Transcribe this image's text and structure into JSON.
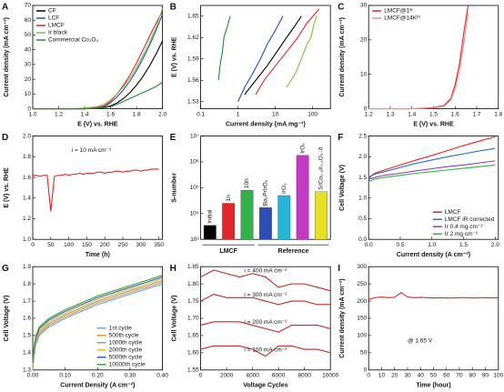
{
  "chart_data": [
    {
      "type": "line",
      "label": "A",
      "xlabel": "E (V) vs. RHE",
      "ylabel": "Current density (mA cm⁻²)",
      "x": [
        1.0,
        1.1,
        1.2,
        1.3,
        1.4,
        1.5,
        1.55,
        1.6,
        1.65,
        1.7,
        1.75,
        1.8,
        1.85,
        1.9,
        1.95,
        2.0
      ],
      "xlim": [
        1.0,
        2.0
      ],
      "xticks": [
        {
          "value": 1,
          "label": "1.0"
        },
        1.2,
        1.4,
        1.6,
        1.8,
        {
          "value": 2,
          "label": "2.0"
        }
      ],
      "ylim": [
        0,
        70
      ],
      "yticks": [
        0,
        10,
        20,
        30,
        40,
        50,
        60,
        70
      ],
      "legend": "top-left",
      "series": [
        {
          "name": "CF",
          "color": "#000000",
          "values": [
            0,
            0,
            0,
            0,
            0,
            0.5,
            1,
            2,
            4,
            7,
            11,
            16,
            22,
            29,
            37,
            46
          ]
        },
        {
          "name": "LCF",
          "color": "#2b4fb3",
          "values": [
            0,
            0,
            0,
            0,
            0,
            0.5,
            1.5,
            4,
            8,
            13,
            19,
            26,
            34,
            43,
            53,
            64
          ]
        },
        {
          "name": "LMCF",
          "color": "#e0262b",
          "values": [
            0,
            0,
            0,
            0,
            0,
            1,
            2,
            5,
            10,
            16,
            23,
            31,
            40,
            49,
            58,
            66
          ]
        },
        {
          "name": "Ir black",
          "color": "#7ac143",
          "values": [
            0,
            0,
            0,
            0,
            0.5,
            1.5,
            3,
            6,
            10,
            15,
            21,
            28,
            36,
            45,
            55,
            68
          ]
        },
        {
          "name": "Commercial Co₃O₄",
          "color": "#1f8a3a",
          "values": [
            0,
            0,
            0,
            0,
            0,
            0.3,
            0.6,
            1.5,
            3,
            5,
            7,
            9,
            11,
            13,
            15,
            18
          ]
        }
      ]
    },
    {
      "type": "line",
      "label": "B",
      "xlabel": "Current density (mA mg⁻¹)",
      "ylabel": "E (V) vs. RHE",
      "xlog": true,
      "xlim": [
        0.1,
        300
      ],
      "xticks": [
        0.1,
        1,
        10,
        100
      ],
      "ylim": [
        1.52,
        1.665
      ],
      "yticks": [
        1.53,
        1.56,
        1.59,
        1.62,
        1.65
      ],
      "series": [
        {
          "color": "#1f8a3a",
          "x": [
            0.3,
            0.33,
            0.38,
            0.42,
            0.48,
            0.55,
            0.62
          ],
          "values": [
            1.56,
            1.58,
            1.6,
            1.62,
            1.63,
            1.64,
            1.65
          ]
        },
        {
          "color": "#2b4fb3",
          "x": [
            1,
            1.5,
            2.5,
            4,
            6,
            10,
            16
          ],
          "values": [
            1.53,
            1.55,
            1.57,
            1.59,
            1.61,
            1.63,
            1.65
          ]
        },
        {
          "color": "#000000",
          "x": [
            1.5,
            3,
            6,
            11,
            20,
            32,
            50
          ],
          "values": [
            1.54,
            1.56,
            1.58,
            1.6,
            1.62,
            1.635,
            1.65
          ]
        },
        {
          "color": "#e0262b",
          "x": [
            3,
            5,
            10,
            20,
            40,
            70,
            150
          ],
          "values": [
            1.54,
            1.56,
            1.58,
            1.6,
            1.62,
            1.64,
            1.66
          ]
        },
        {
          "color": "#7ac143",
          "x": [
            20,
            35,
            50,
            70,
            90,
            110,
            130
          ],
          "values": [
            1.55,
            1.57,
            1.59,
            1.61,
            1.62,
            1.64,
            1.65
          ]
        }
      ]
    },
    {
      "type": "line",
      "label": "C",
      "xlabel": "E (V) vs. RHE",
      "ylabel": "Current density (mA cm⁻²)",
      "x": [
        1.2,
        1.3,
        1.4,
        1.5,
        1.55,
        1.58,
        1.6,
        1.62,
        1.64,
        1.66
      ],
      "xlim": [
        1.2,
        1.8
      ],
      "xticks": [
        1.2,
        1.3,
        1.4,
        1.5,
        1.6,
        1.7,
        1.8
      ],
      "ylim": [
        0,
        30
      ],
      "yticks": [
        0,
        10,
        20,
        30
      ],
      "legend": "top-left",
      "series": [
        {
          "name": "LMCF@1ˢᵗ",
          "color": "#e0262b",
          "values": [
            0,
            0,
            0,
            0.3,
            1,
            3,
            7,
            13,
            22,
            30
          ]
        },
        {
          "name": "LMCF@14Kᵗʰ",
          "color": "#f08a8c",
          "values": [
            0,
            0,
            0,
            0.2,
            0.8,
            2.5,
            6,
            11,
            19,
            28
          ]
        }
      ]
    },
    {
      "type": "line",
      "label": "D",
      "xlabel": "Time (h)",
      "ylabel": "E (V) vs. RHE",
      "annotations": [
        "i = 10 mA cm⁻²"
      ],
      "annotation_position": "top",
      "x": [
        0,
        10,
        20,
        30,
        40,
        50,
        60,
        70,
        80,
        90,
        100,
        110,
        120,
        130,
        140,
        150,
        160,
        170,
        180,
        190,
        200,
        210,
        220,
        230,
        240,
        250,
        260,
        270,
        280,
        290,
        300,
        310,
        320,
        330,
        340,
        350
      ],
      "xlim": [
        0,
        360
      ],
      "xticks": [
        0,
        50,
        100,
        150,
        200,
        250,
        300,
        350
      ],
      "ylim": [
        1.0,
        2.0
      ],
      "yticks": [
        {
          "value": 1,
          "label": "1.0"
        },
        1.2,
        1.4,
        1.6,
        1.8,
        {
          "value": 2,
          "label": "2.0"
        }
      ],
      "series": [
        {
          "color": "#e0262b",
          "values": [
            1.62,
            1.62,
            1.61,
            1.62,
            1.62,
            1.27,
            1.61,
            1.62,
            1.62,
            1.63,
            1.62,
            1.63,
            1.63,
            1.64,
            1.63,
            1.64,
            1.64,
            1.64,
            1.65,
            1.65,
            1.64,
            1.65,
            1.65,
            1.66,
            1.66,
            1.65,
            1.66,
            1.66,
            1.67,
            1.67,
            1.66,
            1.67,
            1.67,
            1.68,
            1.68,
            1.68
          ]
        }
      ]
    },
    {
      "type": "bar",
      "label": "E",
      "ylabel": "S-number",
      "ylog": true,
      "groups": [
        "LMCF",
        "Reference"
      ],
      "categories": [
        "Initial",
        "1h",
        "10h",
        "Ba₂PrIrO₆",
        "IrO₂",
        "IrOₓ",
        "SrCo₀.₉Ir₀.₁O₃₋δ"
      ],
      "values": [
        3500,
        25000,
        80000,
        17000,
        50000,
        1800000,
        70000
      ],
      "colors": [
        "#000000",
        "#e0262b",
        "#2fb34a",
        "#2b4fb3",
        "#26b5d9",
        "#c03bc0",
        "#e6e020"
      ],
      "ylim": [
        1000,
        10000000
      ],
      "yticks": [
        {
          "value": 1000,
          "label": "10³"
        },
        {
          "value": 10000,
          "label": "10⁴"
        },
        {
          "value": 100000,
          "label": "10⁵"
        },
        {
          "value": 1000000,
          "label": "10⁶"
        },
        {
          "value": 10000000,
          "label": "10⁷"
        }
      ]
    },
    {
      "type": "line",
      "label": "F",
      "xlabel": "Current density (A cm⁻²)",
      "ylabel": "Cell Voltage (V)",
      "legend": "bottom-right",
      "x": [
        0,
        0.1,
        0.25,
        0.5,
        0.75,
        1.0,
        1.25,
        1.5,
        1.75,
        2.0
      ],
      "xlim": [
        0,
        2.05
      ],
      "xticks": [
        {
          "value": 0,
          "label": "0.0"
        },
        0.5,
        {
          "value": 1,
          "label": "1.0"
        },
        1.5,
        {
          "value": 2,
          "label": "2.0"
        }
      ],
      "ylim": [
        0,
        2.5
      ],
      "yticks": [
        {
          "value": 0,
          "label": "0.0"
        },
        0.5,
        {
          "value": 1,
          "label": "1.0"
        },
        1.5,
        {
          "value": 2,
          "label": "2.0"
        },
        2.5
      ],
      "series": [
        {
          "name": "LMCF",
          "color": "#e0262b",
          "values": [
            1.5,
            1.6,
            1.68,
            1.8,
            1.92,
            2.03,
            2.15,
            2.27,
            2.38,
            2.48
          ]
        },
        {
          "name": "LMCF iR corrected",
          "color": "#2b6fc9",
          "values": [
            1.5,
            1.58,
            1.64,
            1.74,
            1.84,
            1.92,
            2.0,
            2.07,
            2.14,
            2.2
          ]
        },
        {
          "name": "Ir 0.4 mg cm⁻²",
          "color": "#8e3fb0",
          "values": [
            1.45,
            1.5,
            1.55,
            1.6,
            1.66,
            1.71,
            1.76,
            1.8,
            1.85,
            1.9
          ]
        },
        {
          "name": "Ir 2 mg cm⁻²",
          "color": "#2fb34a",
          "values": [
            1.4,
            1.46,
            1.5,
            1.55,
            1.6,
            1.64,
            1.68,
            1.72,
            1.76,
            1.8
          ]
        }
      ]
    },
    {
      "type": "line",
      "label": "G",
      "xlabel": "Current Density (A cm⁻²)",
      "ylabel": "Cell Voltage (V)",
      "legend": "bottom-right",
      "x": [
        0,
        0.005,
        0.01,
        0.02,
        0.05,
        0.1,
        0.15,
        0.2,
        0.25,
        0.3,
        0.35,
        0.4
      ],
      "xlim": [
        0,
        0.4
      ],
      "xticks": [
        {
          "value": 0,
          "label": "0.00"
        },
        {
          "value": 0.1,
          "label": "0.10"
        },
        {
          "value": 0.2,
          "label": "0.20"
        },
        {
          "value": 0.3,
          "label": "0.30"
        },
        {
          "value": 0.4,
          "label": "0.40"
        }
      ],
      "ylim": [
        1.3,
        1.9
      ],
      "yticks": [
        1.3,
        1.4,
        1.5,
        1.6,
        1.7,
        1.8,
        1.9
      ],
      "series": [
        {
          "name": "1st cycle",
          "color": "#5aa9e6",
          "values": [
            1.3,
            1.4,
            1.45,
            1.5,
            1.55,
            1.6,
            1.64,
            1.68,
            1.71,
            1.74,
            1.77,
            1.8
          ]
        },
        {
          "name": "500th cycle",
          "color": "#f0902a",
          "values": [
            1.31,
            1.41,
            1.46,
            1.51,
            1.56,
            1.61,
            1.65,
            1.69,
            1.72,
            1.75,
            1.78,
            1.81
          ]
        },
        {
          "name": "1000th cycle",
          "color": "#9a9a9a",
          "values": [
            1.32,
            1.42,
            1.47,
            1.52,
            1.57,
            1.62,
            1.66,
            1.7,
            1.73,
            1.76,
            1.79,
            1.82
          ]
        },
        {
          "name": "2000th cycle",
          "color": "#e8c020",
          "values": [
            1.33,
            1.43,
            1.48,
            1.53,
            1.58,
            1.63,
            1.67,
            1.71,
            1.74,
            1.77,
            1.8,
            1.83
          ]
        },
        {
          "name": "5000th cycle",
          "color": "#3060c0",
          "values": [
            1.34,
            1.44,
            1.49,
            1.54,
            1.59,
            1.64,
            1.68,
            1.72,
            1.75,
            1.78,
            1.81,
            1.84
          ]
        },
        {
          "name": "10000th cycle",
          "color": "#40a040",
          "values": [
            1.35,
            1.45,
            1.5,
            1.55,
            1.6,
            1.65,
            1.69,
            1.73,
            1.76,
            1.79,
            1.82,
            1.85
          ]
        }
      ]
    },
    {
      "type": "line",
      "label": "H",
      "xlabel": "Voltage Cycles",
      "ylabel": "Cell Voltage (V)",
      "series_labels": "inline",
      "x": [
        0,
        1000,
        2000,
        3000,
        4000,
        5000,
        6000,
        7000,
        8000,
        9000,
        10000
      ],
      "xlim": [
        0,
        10000
      ],
      "xticks": [
        0,
        2000,
        4000,
        6000,
        8000,
        10000
      ],
      "ylim": [
        1.55,
        1.85
      ],
      "yticks": [
        1.55,
        {
          "value": 1.6,
          "label": "1.60"
        },
        1.65,
        {
          "value": 1.7,
          "label": "1.70"
        },
        1.75,
        {
          "value": 1.8,
          "label": "1.80"
        },
        1.85
      ],
      "series": [
        {
          "name": "i = 400 mA cm⁻²",
          "color": "#c0282a",
          "values": [
            1.82,
            1.84,
            1.83,
            1.82,
            1.83,
            1.82,
            1.79,
            1.8,
            1.8,
            1.79,
            1.78
          ]
        },
        {
          "name": "i = 300 mA cm⁻²",
          "color": "#c0282a",
          "values": [
            1.75,
            1.77,
            1.76,
            1.76,
            1.76,
            1.75,
            1.74,
            1.75,
            1.75,
            1.74,
            1.74
          ]
        },
        {
          "name": "i = 200 mA cm⁻²",
          "color": "#c0282a",
          "values": [
            1.68,
            1.69,
            1.69,
            1.69,
            1.68,
            1.67,
            1.66,
            1.68,
            1.68,
            1.68,
            1.67
          ]
        },
        {
          "name": "i = 100 mA cm⁻²",
          "color": "#c0282a",
          "values": [
            1.61,
            1.62,
            1.62,
            1.62,
            1.61,
            1.59,
            1.62,
            1.62,
            1.61,
            1.61,
            1.6
          ]
        }
      ]
    },
    {
      "type": "line",
      "label": "I",
      "xlabel": "Time (hour)",
      "ylabel": "Current density (mA cm⁻²)",
      "annotations": [
        "@ 1.65 V"
      ],
      "annotation_position": "bottom",
      "x": [
        0,
        5,
        10,
        15,
        20,
        25,
        30,
        35,
        40,
        45,
        50,
        55,
        60,
        65,
        70,
        75,
        80,
        85,
        90,
        95,
        100
      ],
      "xlim": [
        0,
        100
      ],
      "xticks": [
        0,
        10,
        20,
        30,
        40,
        50,
        60,
        70,
        80,
        90,
        100
      ],
      "ylim": [
        0,
        300
      ],
      "yticks": [
        0,
        50,
        100,
        150,
        200,
        250,
        300
      ],
      "series": [
        {
          "color": "#e0262b",
          "values": [
            205,
            210,
            212,
            210,
            211,
            225,
            212,
            210,
            211,
            210,
            209,
            210,
            209,
            209,
            210,
            210,
            209,
            210,
            210,
            209,
            210
          ]
        }
      ]
    }
  ]
}
